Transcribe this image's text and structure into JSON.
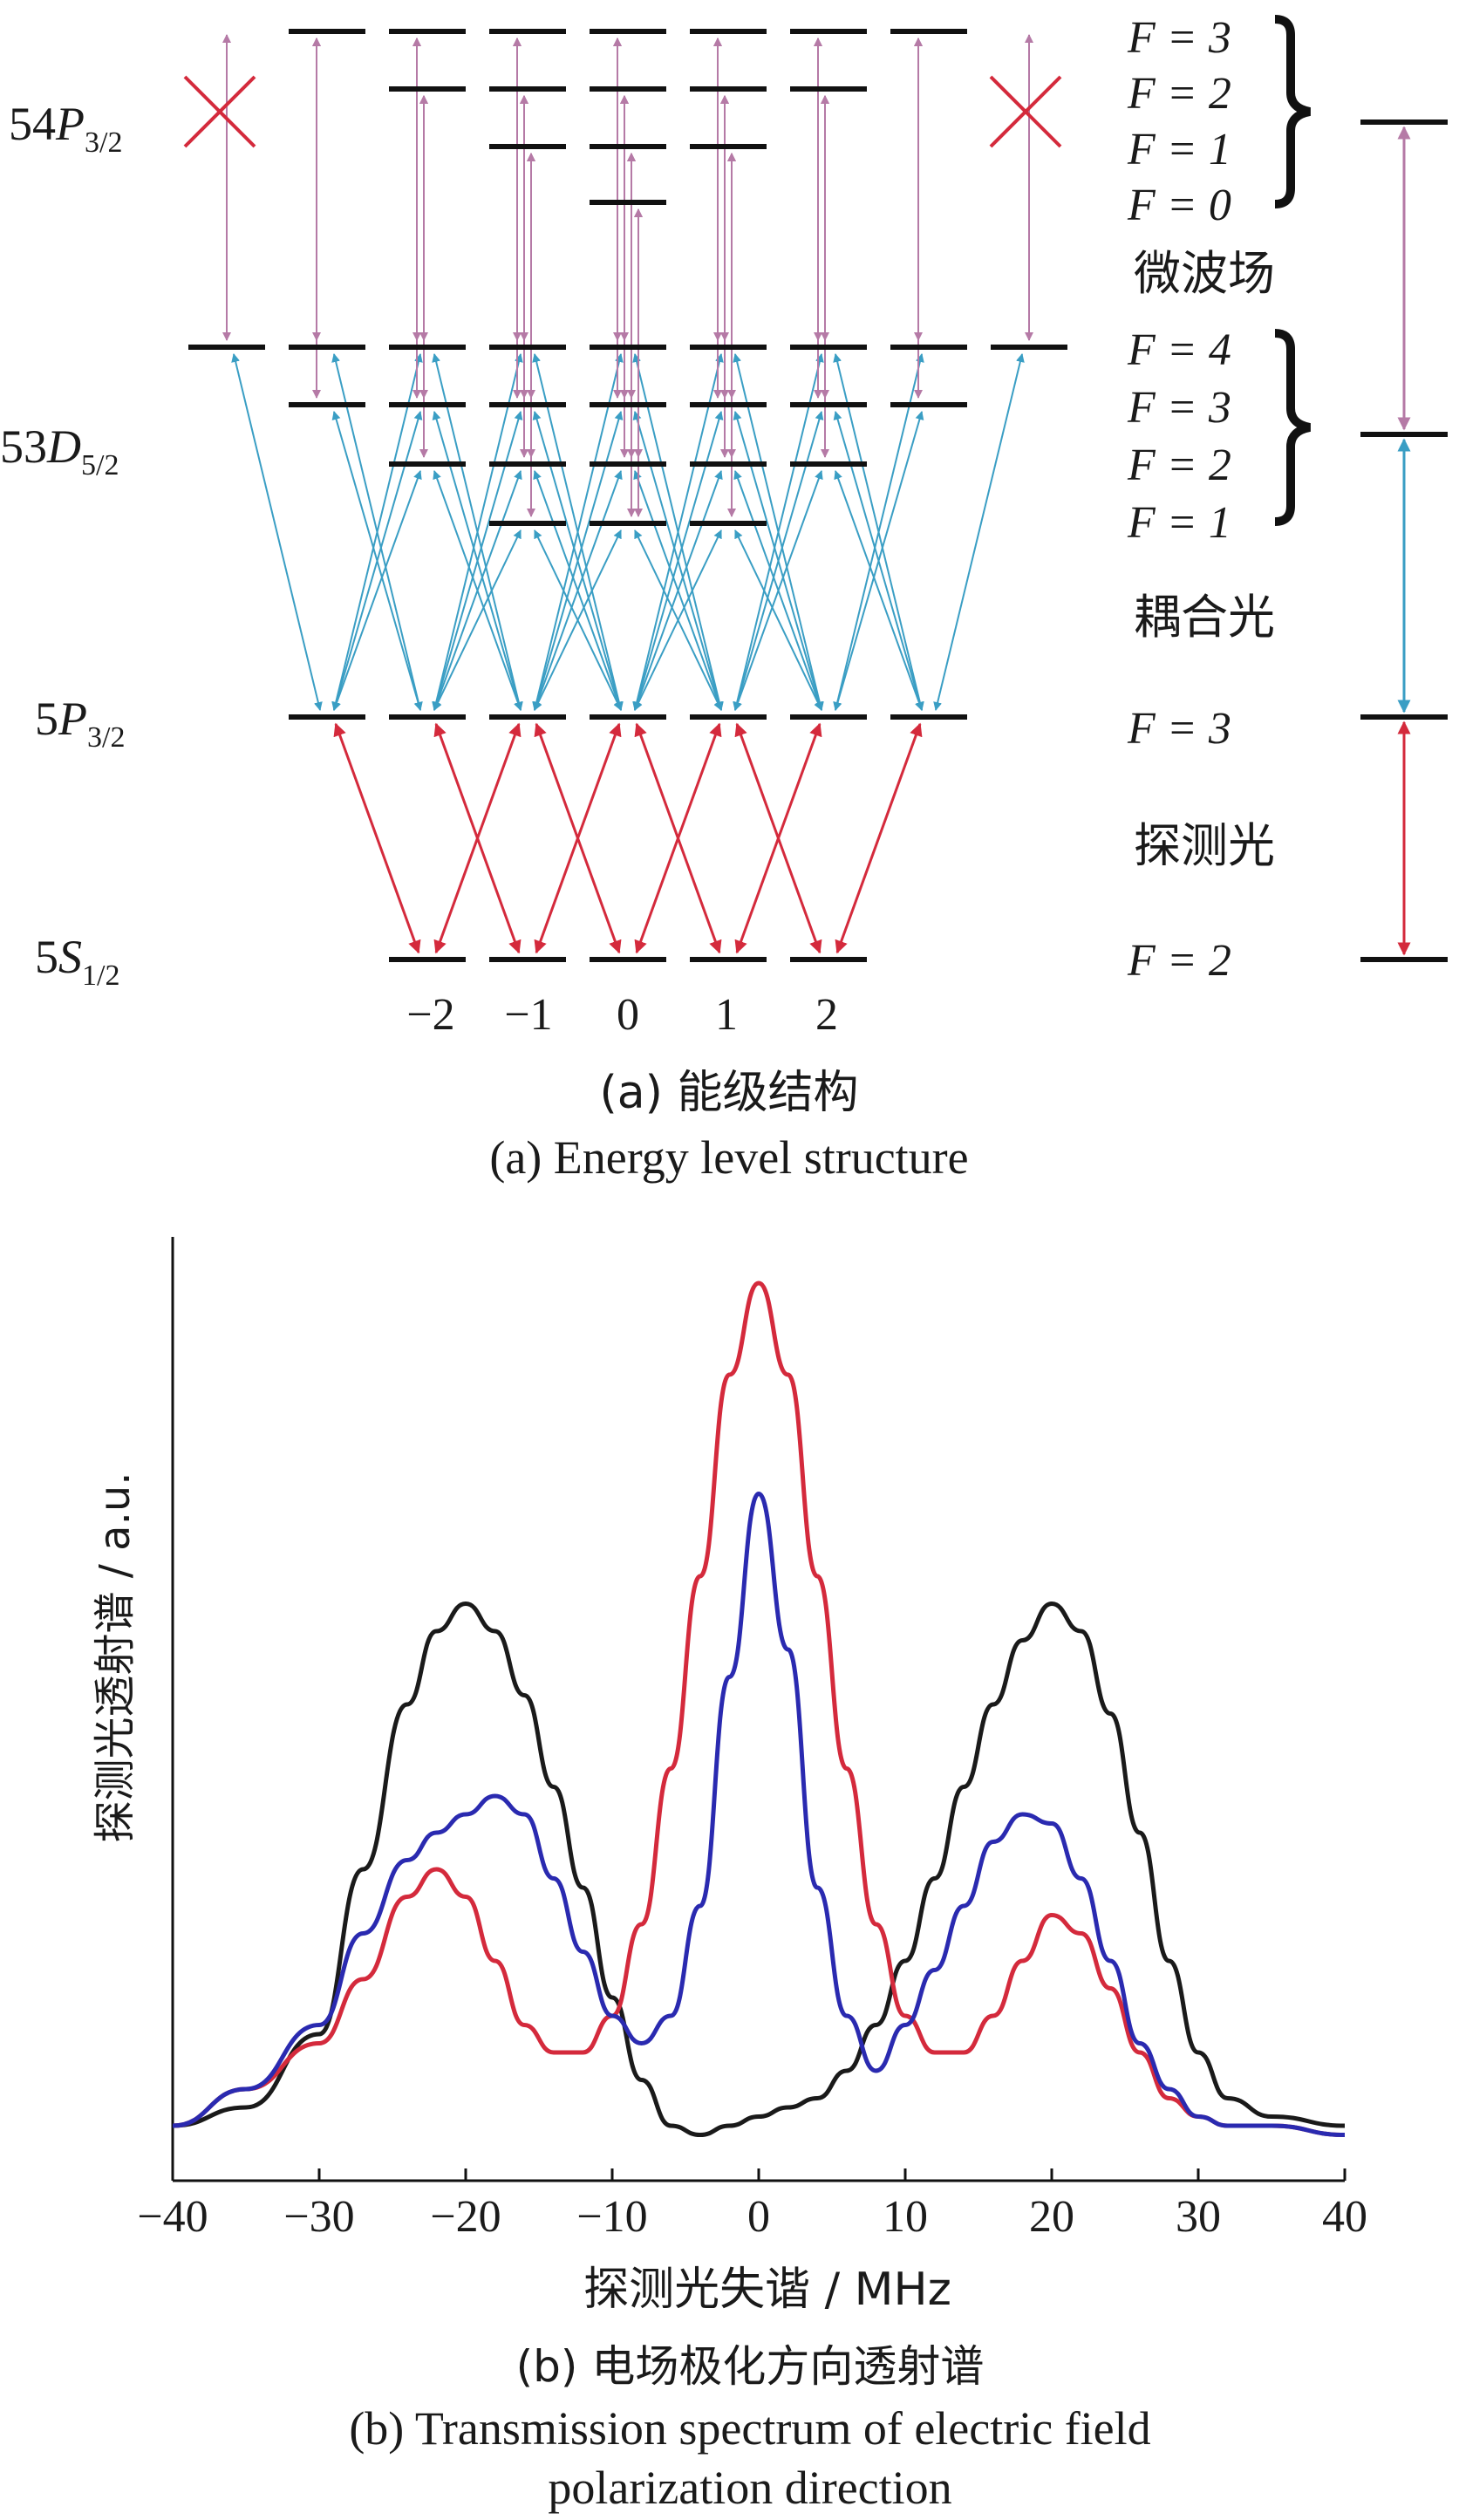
{
  "part_a": {
    "left_labels": {
      "p54": {
        "main": "54P",
        "sub": "3/2"
      },
      "d53": {
        "main": "53D",
        "sub": "5/2"
      },
      "p5": {
        "main": "5P",
        "sub": "3/2"
      },
      "s5": {
        "main": "5S",
        "sub": "1/2"
      }
    },
    "right_labels": {
      "p54": [
        "F = 3",
        "F = 2",
        "F = 1",
        "F = 0"
      ],
      "d53": [
        "F = 4",
        "F = 3",
        "F = 2",
        "F = 1"
      ],
      "p5": "F = 3",
      "s5": "F = 2"
    },
    "field_labels": {
      "microwave": "微波场",
      "coupling": "耦合光",
      "probe": "探测光"
    },
    "mf_labels": [
      "−2",
      "−1",
      "0",
      "1",
      "2"
    ],
    "caption_cn": "(a) 能级结构",
    "caption_en": "(a) Energy level structure",
    "colors": {
      "probe": "#d42a3c",
      "coupling": "#3a9ec4",
      "microwave": "#b57aa6",
      "cross": "#d42a3c"
    }
  },
  "chart_data": {
    "type": "line",
    "xlabel": "探测光失谐 / MHz",
    "ylabel": "探测光透射谱 / a.u.",
    "xlim": [
      -40,
      40
    ],
    "ylim": [
      0,
      1
    ],
    "xticks": [
      -40,
      -30,
      -20,
      -10,
      0,
      10,
      20,
      30,
      40
    ],
    "xtick_labels": [
      "−40",
      "−30",
      "−20",
      "−10",
      "0",
      "10",
      "20",
      "30",
      "40"
    ],
    "series": [
      {
        "color": "#1a1a1a",
        "x": [
          -40,
          -35,
          -30,
          -27,
          -24,
          -22,
          -20,
          -18,
          -16,
          -14,
          -12,
          -10,
          -8,
          -6,
          -4,
          -2,
          0,
          2,
          4,
          6,
          8,
          10,
          12,
          14,
          16,
          18,
          20,
          22,
          24,
          26,
          28,
          30,
          32,
          35,
          40
        ],
        "y": [
          0.06,
          0.08,
          0.16,
          0.34,
          0.52,
          0.6,
          0.63,
          0.6,
          0.53,
          0.43,
          0.32,
          0.2,
          0.11,
          0.06,
          0.05,
          0.06,
          0.07,
          0.08,
          0.09,
          0.12,
          0.17,
          0.24,
          0.33,
          0.43,
          0.52,
          0.59,
          0.63,
          0.6,
          0.51,
          0.38,
          0.24,
          0.14,
          0.09,
          0.07,
          0.06
        ]
      },
      {
        "color": "#d42a3c",
        "x": [
          -40,
          -35,
          -30,
          -27,
          -24,
          -22,
          -20,
          -18,
          -16,
          -14,
          -12,
          -10,
          -8,
          -6,
          -4,
          -2,
          0,
          2,
          4,
          6,
          8,
          10,
          12,
          14,
          16,
          18,
          20,
          22,
          24,
          26,
          28,
          30,
          32,
          35,
          40
        ],
        "y": [
          0.06,
          0.1,
          0.15,
          0.22,
          0.31,
          0.34,
          0.31,
          0.24,
          0.17,
          0.14,
          0.14,
          0.18,
          0.28,
          0.45,
          0.66,
          0.88,
          0.98,
          0.88,
          0.66,
          0.45,
          0.28,
          0.18,
          0.14,
          0.14,
          0.18,
          0.24,
          0.29,
          0.27,
          0.21,
          0.14,
          0.09,
          0.07,
          0.06,
          0.06,
          0.05
        ]
      },
      {
        "color": "#2a2ab0",
        "x": [
          -40,
          -35,
          -30,
          -27,
          -24,
          -22,
          -20,
          -18,
          -16,
          -14,
          -12,
          -10,
          -8,
          -6,
          -4,
          -2,
          0,
          2,
          4,
          6,
          8,
          10,
          12,
          14,
          16,
          18,
          20,
          22,
          24,
          26,
          28,
          30,
          32,
          35,
          40
        ],
        "y": [
          0.06,
          0.1,
          0.17,
          0.27,
          0.35,
          0.38,
          0.4,
          0.42,
          0.4,
          0.33,
          0.25,
          0.18,
          0.15,
          0.18,
          0.3,
          0.55,
          0.75,
          0.58,
          0.32,
          0.18,
          0.12,
          0.17,
          0.23,
          0.3,
          0.37,
          0.4,
          0.39,
          0.33,
          0.24,
          0.15,
          0.1,
          0.07,
          0.06,
          0.06,
          0.05
        ]
      }
    ]
  },
  "part_b": {
    "caption_cn": "(b) 电场极化方向透射谱",
    "caption_en_line1": "(b) Transmission spectrum of electric field",
    "caption_en_line2": "polarization direction"
  }
}
